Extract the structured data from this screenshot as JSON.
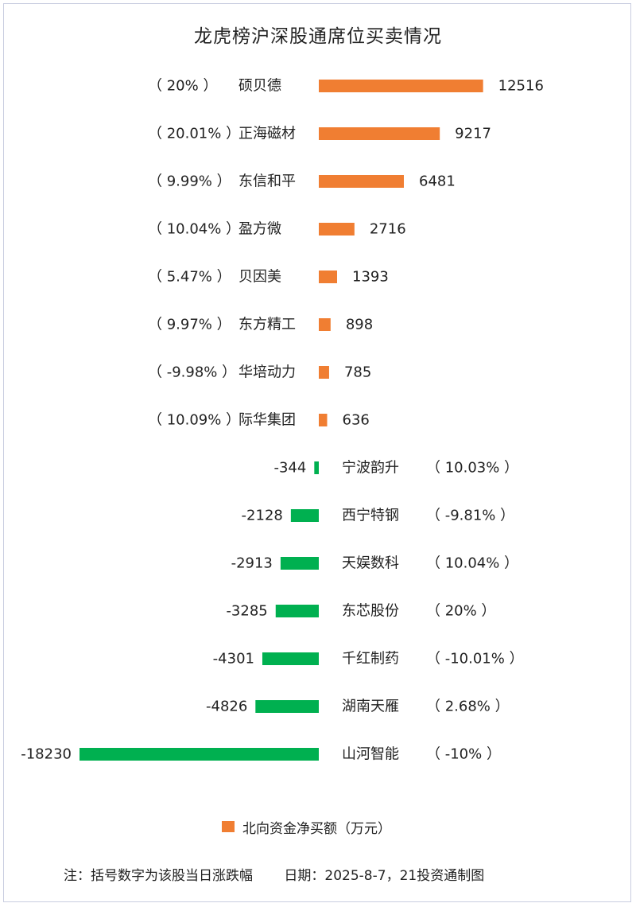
{
  "colors": {
    "positive": "#f07e32",
    "negative": "#00b050",
    "border": "#c9cde0"
  },
  "chart_data": {
    "type": "bar",
    "orientation": "horizontal",
    "title": "龙虎榜沪深股通席位买卖情况",
    "legend": {
      "label": "北向资金净买额（万元）",
      "placement": "bottom"
    },
    "rows": [
      {
        "name": "硕贝德",
        "pct": "（ 20% ）",
        "value": 12516
      },
      {
        "name": "正海磁材",
        "pct": "（ 20.01% ）",
        "value": 9217
      },
      {
        "name": "东信和平",
        "pct": "（ 9.99% ）",
        "value": 6481
      },
      {
        "name": "盈方微",
        "pct": "（ 10.04% ）",
        "value": 2716
      },
      {
        "name": "贝因美",
        "pct": "（ 5.47% ）",
        "value": 1393
      },
      {
        "name": "东方精工",
        "pct": "（ 9.97% ）",
        "value": 898
      },
      {
        "name": "华培动力",
        "pct": "（ -9.98% ）",
        "value": 785
      },
      {
        "name": "际华集团",
        "pct": "（ 10.09% ）",
        "value": 636
      },
      {
        "name": "宁波韵升",
        "pct": "（ 10.03% ）",
        "value": -344
      },
      {
        "name": "西宁特钢",
        "pct": "（ -9.81% ）",
        "value": -2128
      },
      {
        "name": "天娱数科",
        "pct": "（ 10.04% ）",
        "value": -2913
      },
      {
        "name": "东芯股份",
        "pct": "（ 20% ）",
        "value": -3285
      },
      {
        "name": "千红制药",
        "pct": "（ -10.01% ）",
        "value": -4301
      },
      {
        "name": "湖南天雁",
        "pct": "（ 2.68% ）",
        "value": -4826
      },
      {
        "name": "山河智能",
        "pct": "（ -10% ）",
        "value": -18230
      }
    ]
  },
  "footer": {
    "note": "注：括号数字为该股当日涨跌幅",
    "date": "日期：2025-8-7，21投资通制图"
  }
}
